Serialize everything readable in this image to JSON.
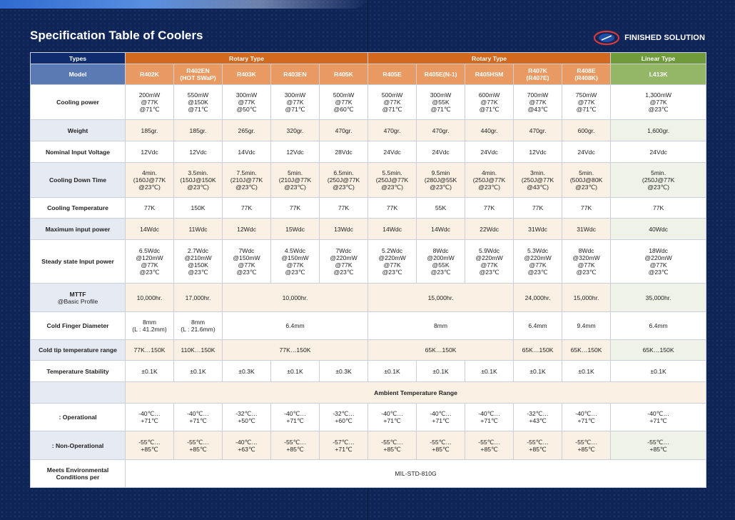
{
  "page": {
    "title": "Specification Table of Coolers",
    "brand": "FINISHED SOLUTION"
  },
  "colors": {
    "background": "#0f2558",
    "rotary": "#d2691e",
    "rotary_model": "#e89a62",
    "linear": "#6f9b3b",
    "linear_model": "#93b767",
    "types_header": "#0f2d6e",
    "model_header": "#5b79b3",
    "label_alt": "#e6eaf3",
    "row_alt": "#faf1e4"
  },
  "header": {
    "types_label": "Types",
    "rotary_label_1": "Rotary Type",
    "rotary_label_2": "Rotary Type",
    "linear_label": "Linear Type",
    "model_label": "Model",
    "models": [
      "R402K",
      "R402EN\n(HOT SWaP)",
      "R403K",
      "R403EN",
      "R405K",
      "R405E",
      "R405E(N-1)",
      "R405HSM",
      "R407K\n(R407E)",
      "R408E\n(R408K)",
      "L413K"
    ]
  },
  "rows": {
    "cooling_power": {
      "label": "Cooling power",
      "values": [
        "200mW\n@77K\n@71℃",
        "550mW\n@150K\n@71℃",
        "300mW\n@77K\n@50℃",
        "300mW\n@77K\n@71℃",
        "500mW\n@77K\n@60℃",
        "500mW\n@77K\n@71℃",
        "300mW\n@55K\n@71℃",
        "600mW\n@77K\n@71℃",
        "700mW\n@77K\n@43℃",
        "750mW\n@77K\n@71℃",
        "1,300mW\n@77K\n@23℃"
      ]
    },
    "weight": {
      "label": "Weight",
      "values": [
        "185gr.",
        "185gr.",
        "265gr.",
        "320gr.",
        "470gr.",
        "470gr.",
        "470gr.",
        "440gr.",
        "470gr.",
        "600gr.",
        "1,600gr."
      ]
    },
    "nominal_input_voltage": {
      "label": "Nominal Input Voltage",
      "values": [
        "12Vdc",
        "12Vdc",
        "14Vdc",
        "12Vdc",
        "28Vdc",
        "24Vdc",
        "24Vdc",
        "24Vdc",
        "12Vdc",
        "24Vdc",
        "24Vdc"
      ]
    },
    "cooling_down_time": {
      "label": "Cooling Down Time",
      "values": [
        "4min.\n(160J@77K\n@23℃)",
        "3.5min.\n(150J@150K\n@23℃)",
        "7.5min.\n(210J@77K\n@23℃)",
        "5min.\n(210J@77K\n@23℃)",
        "6.5min.\n(250J@77K\n@23℃)",
        "5.5min.\n(250J@77K\n@23℃)",
        "9.5min\n(280J@55K\n@23℃)",
        "4min.\n(250J@77K\n@23℃)",
        "3min.\n(250J@77K\n@43℃)",
        "5min.\n(500J@80K\n@23℃)",
        "5min.\n(250J@77K\n@23℃)"
      ]
    },
    "cooling_temperature": {
      "label": "Cooling Temperature",
      "values": [
        "77K",
        "150K",
        "77K",
        "77K",
        "77K",
        "77K",
        "55K",
        "77K",
        "77K",
        "77K",
        "77K"
      ]
    },
    "maximum_input_power": {
      "label": "Maximum input power",
      "values": [
        "14Wdc",
        "11Wdc",
        "12Wdc",
        "15Wdc",
        "13Wdc",
        "14Wdc",
        "14Wdc",
        "22Wdc",
        "31Wdc",
        "31Wdc",
        "40Wdc"
      ]
    },
    "steady_state_input_power": {
      "label": "Steady state Input power",
      "values": [
        "6.5Wdc\n@120mW\n@77K\n@23℃",
        "2.7Wdc\n@210mW\n@150K\n@23℃",
        "7Wdc\n@150mW\n@77K\n@23℃",
        "4.5Wdc\n@150mW\n@77K\n@23℃",
        "7Wdc\n@220mW\n@77K\n@23℃",
        "5.2Wdc\n@220mW\n@77K\n@23℃",
        "8Wdc\n@200mW\n@55K\n@23℃",
        "5.9Wdc\n@220mW\n@77K\n@23℃",
        "5.3Wdc\n@220mW\n@77K\n@23℃",
        "8Wdc\n@320mW\n@77K\n@23℃",
        "18Wdc\n@220mW\n@77K\n@23℃"
      ]
    },
    "mttf": {
      "label": "MTTF",
      "sublabel": "@Basic Profile",
      "v1": "10,000hr.",
      "v2": "17,000hr.",
      "v3": "10,000hr.",
      "v4": "15,000hr.",
      "v5": "24,000hr.",
      "v6": "15,000hr.",
      "v7": "35,000hr."
    },
    "cold_finger_diameter": {
      "label": "Cold Finger Diameter",
      "v1": "8mm\n(L : 41.2mm)",
      "v2": "8mm\n(L : 21.6mm)",
      "v3": "6.4mm",
      "v4": "8mm",
      "v5": "6.4mm",
      "v6": "9.4mm",
      "v7": "6.4mm"
    },
    "cold_tip_temperature_range": {
      "label": "Cold tip temperature range",
      "v1": "77K…150K",
      "v2": "110K…150K",
      "v3": "77K…150K",
      "v4": "65K…150K",
      "v5": "65K…150K",
      "v6": "65K…150K",
      "v7": "65K…150K"
    },
    "temperature_stability": {
      "label": "Temperature Stability",
      "values": [
        "±0.1K",
        "±0.1K",
        "±0.3K",
        "±0.1K",
        "±0.3K",
        "±0.1K",
        "±0.1K",
        "±0.1K",
        "±0.1K",
        "±0.1K",
        "±0.1K"
      ]
    },
    "ambient": {
      "label": "Ambient Temperature Range"
    },
    "operational": {
      "label": ": Operational",
      "values": [
        "-40℃…\n+71℃",
        "-40℃…\n+71℃",
        "-32℃…\n+50℃",
        "-40℃…\n+71℃",
        "-32℃…\n+60℃",
        "-40℃…\n+71℃",
        "-40℃…\n+71℃",
        "-40℃…\n+71℃",
        "-32℃…\n+43℃",
        "-40℃…\n+71℃",
        "-40℃…\n+71℃"
      ]
    },
    "non_operational": {
      "label": ": Non-Operational",
      "values": [
        "-55℃…\n+85℃",
        "-55℃…\n+85℃",
        "-40℃…\n+63℃",
        "-55℃…\n+85℃",
        "-57℃…\n+71℃",
        "-55℃…\n+85℃",
        "-55℃…\n+85℃",
        "-55℃…\n+85℃",
        "-55℃…\n+85℃",
        "-55℃…\n+85℃",
        "-55℃…\n+85℃"
      ]
    },
    "environmental": {
      "label": "Meets Environmental\nConditions per",
      "value": "MIL-STD-810G"
    }
  }
}
